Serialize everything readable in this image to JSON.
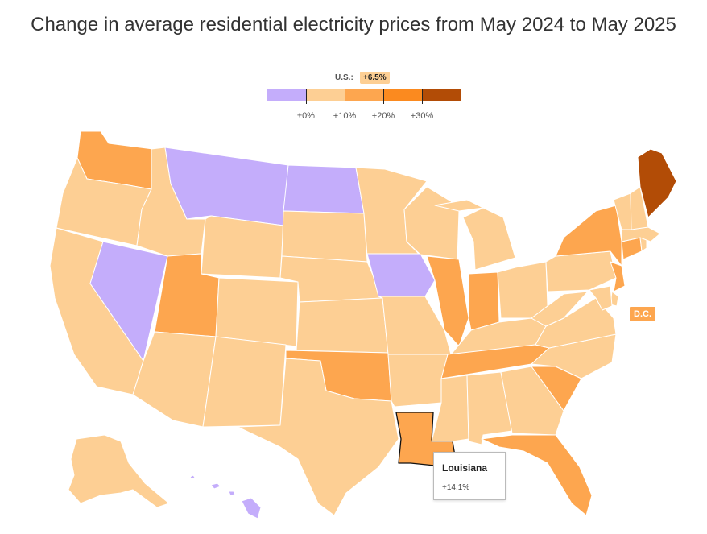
{
  "title": "Change in average residential electricity prices from May 2024 to May 2025",
  "legend": {
    "us_label": "U.S.:",
    "us_value": "+6.5%",
    "ticks": [
      "±0%",
      "+10%",
      "+20%",
      "+30%"
    ],
    "bins": [
      {
        "color": "#c4adfb"
      },
      {
        "color": "#fdcf94"
      },
      {
        "color": "#fda64f"
      },
      {
        "color": "#fb8a1f"
      },
      {
        "color": "#b24c06"
      }
    ]
  },
  "colors": {
    "decrease": "#c4adfb",
    "0_10": "#fdcf94",
    "10_20": "#fda64f",
    "20_30": "#fb8a1f",
    "30_plus": "#b24c06"
  },
  "states": {
    "WA": "10_20",
    "OR": "0_10",
    "CA": "0_10",
    "NV": "decrease",
    "ID": "0_10",
    "MT": "decrease",
    "WY": "0_10",
    "UT": "10_20",
    "AZ": "0_10",
    "CO": "0_10",
    "NM": "0_10",
    "ND": "decrease",
    "SD": "0_10",
    "NE": "0_10",
    "KS": "0_10",
    "OK": "10_20",
    "TX": "0_10",
    "MN": "0_10",
    "IA": "decrease",
    "MO": "0_10",
    "AR": "0_10",
    "LA": "10_20",
    "WI": "0_10",
    "IL": "10_20",
    "MI": "0_10",
    "IN": "10_20",
    "OH": "0_10",
    "KY": "0_10",
    "TN": "10_20",
    "MS": "0_10",
    "AL": "0_10",
    "GA": "0_10",
    "FL": "10_20",
    "SC": "10_20",
    "NC": "0_10",
    "VA": "0_10",
    "WV": "0_10",
    "PA": "0_10",
    "NY": "10_20",
    "NJ": "10_20",
    "DE": "0_10",
    "MD": "0_10",
    "CT": "10_20",
    "RI": "0_10",
    "MA": "0_10",
    "VT": "0_10",
    "NH": "0_10",
    "ME": "30_plus",
    "AK": "0_10",
    "HI": "decrease",
    "DC": "10_20"
  },
  "dc_label": "D.C.",
  "tooltip": {
    "state": "Louisiana",
    "value": "+14.1%"
  }
}
